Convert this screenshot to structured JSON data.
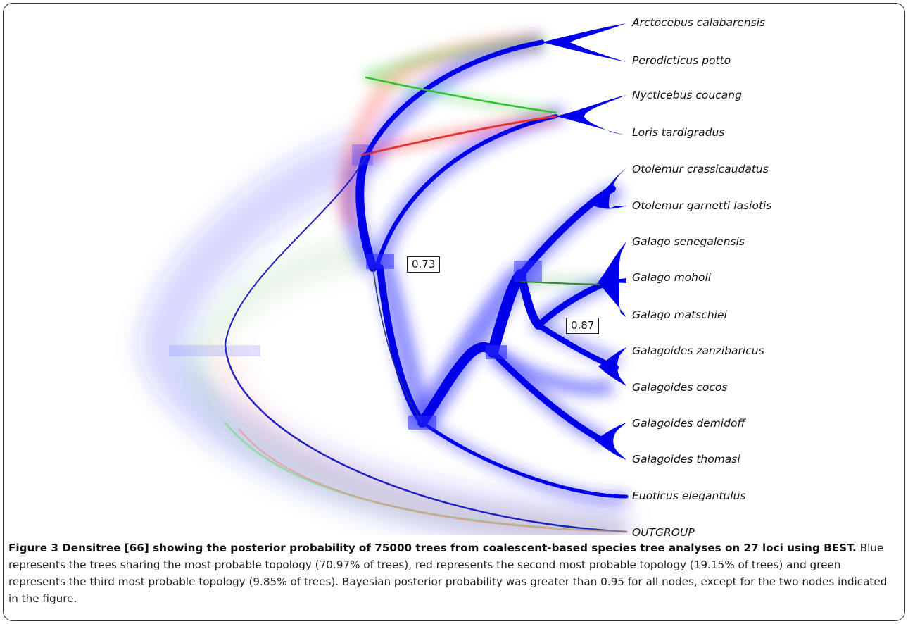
{
  "figure": {
    "taxa": [
      "Arctocebus calabarensis",
      "Perodicticus potto",
      "Nycticebus coucang",
      "Loris tardigradus",
      "Otolemur crassicaudatus",
      "Otolemur garnetti lasiotis",
      "Galago senegalensis",
      "Galago moholi",
      "Galago matschiei",
      "Galagoides zanzibaricus",
      "Galagoides cocos",
      "Galagoides demidoff",
      "Galagoides thomasi",
      "Euoticus elegantulus",
      "OUTGROUP"
    ],
    "support_labels": [
      "0.73",
      "0.87"
    ],
    "colors": {
      "most_probable": "#0000ee",
      "second_probable": "#e8332a",
      "third_probable": "#2fcf2f"
    }
  },
  "caption": {
    "bold": "Figure 3 Densitree [66] showing the posterior probability of 75000 trees from coalescent-based species tree analyses on 27 loci using BEST.",
    "text": " Blue represents the trees sharing the most probable topology (70.97% of trees), red represents the second most probable topology (19.15% of trees) and green represents the third most probable topology (9.85% of trees). Bayesian posterior probability was greater than 0.95 for all nodes, except for the two nodes indicated in the figure."
  }
}
